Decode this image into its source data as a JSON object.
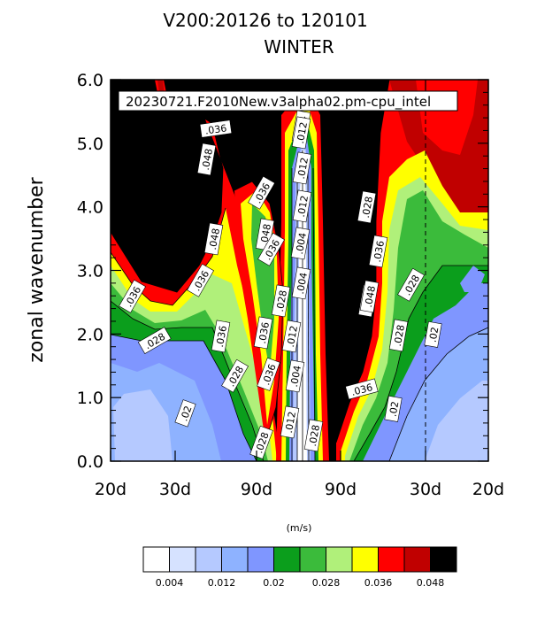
{
  "chart_data": {
    "type": "heatmap",
    "title": "V200:20126 to 120101",
    "subtitle": "WINTER",
    "run_label": "20230721.F2010New.v3alpha02.pm-cpu_intel",
    "ylabel": "zonal wavenumber",
    "ylim": [
      0,
      6
    ],
    "y_ticks": [
      "0.0",
      "1.0",
      "2.0",
      "3.0",
      "4.0",
      "5.0",
      "6.0"
    ],
    "x_tick_labels": [
      "20d",
      "30d",
      "90d",
      "90d",
      "30d",
      "20d"
    ],
    "colorbar_unit": "(m/s)",
    "colorbar_labels": [
      "0.004",
      "0.012",
      "0.02",
      "0.028",
      "0.036",
      "0.048"
    ],
    "colors": [
      "#ffffff",
      "#d6e2ff",
      "#b5c9ff",
      "#8eb2ff",
      "#7f96ff",
      "#0b9e1c",
      "#3bbb3b",
      "#b0f07a",
      "#ffff00",
      "#ff0000",
      "#c00000",
      "#000000"
    ],
    "grid": false,
    "contour_labels": [
      ".036",
      ".048",
      ".036",
      ".048",
      ".036",
      ".036",
      ".048",
      ".036",
      ".028",
      ".028",
      ".048",
      ".036",
      ".028",
      ".02",
      ".004",
      ".012",
      ".012",
      ".004",
      ".004",
      ".012",
      ".028",
      ".004",
      ".012",
      ".036",
      ".028",
      ".036",
      ".036",
      ".048",
      ".028",
      ".028",
      ".02",
      ".02",
      ".036",
      ".028",
      ".012"
    ]
  }
}
